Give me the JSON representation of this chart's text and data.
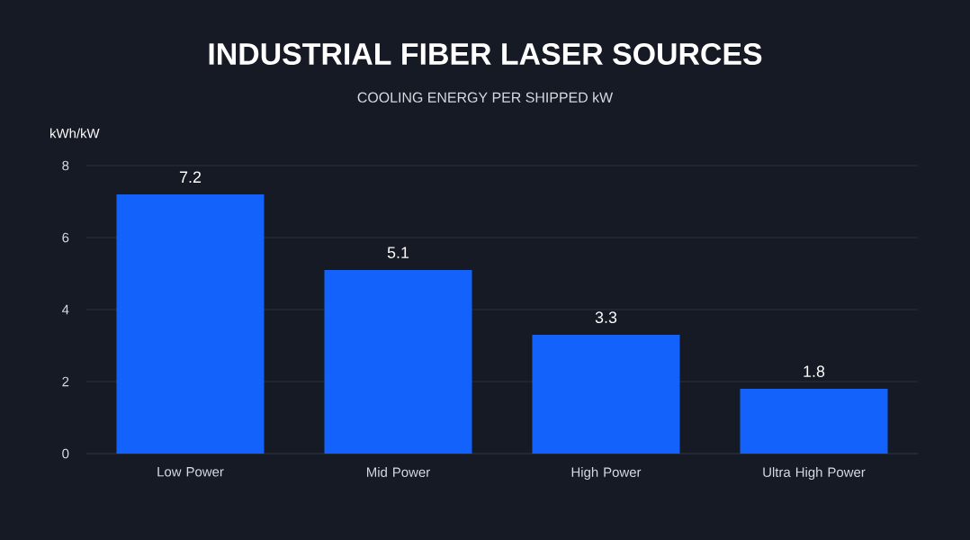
{
  "chart_data": {
    "type": "bar",
    "title": "INDUSTRIAL FIBER LASER SOURCES",
    "subtitle": "COOLING ENERGY PER SHIPPED kW",
    "ylabel": "kWh/kW",
    "categories": [
      "Low Power",
      "Mid Power",
      "High Power",
      "Ultra High Power"
    ],
    "values": [
      7.2,
      5.1,
      3.3,
      1.8
    ],
    "value_labels": [
      "7.2",
      "5.1",
      "3.3",
      "1.8"
    ],
    "color": "#1262fb",
    "ylim": [
      0,
      8
    ],
    "yticks": [
      0,
      2,
      4,
      6,
      8
    ],
    "grid": "y"
  }
}
